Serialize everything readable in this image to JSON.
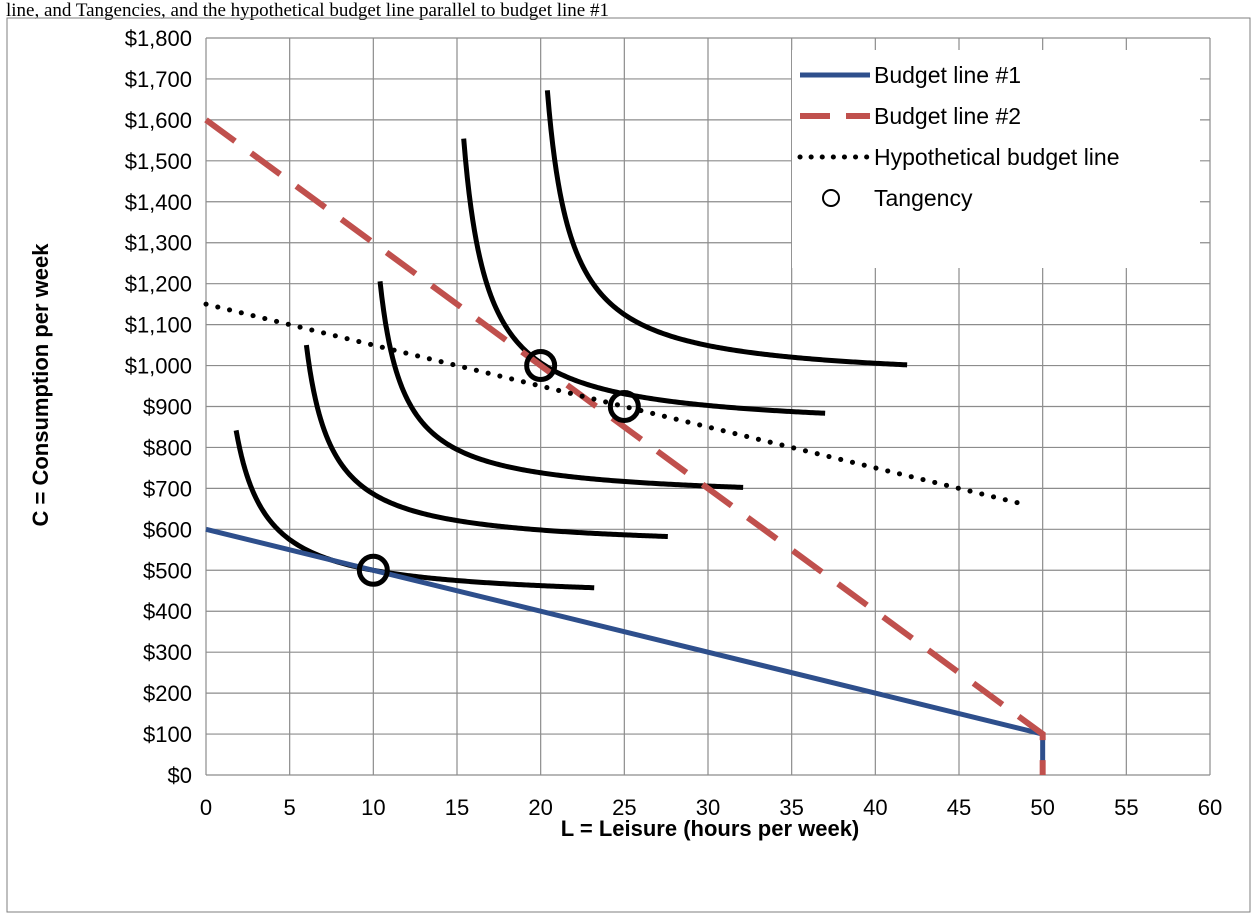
{
  "caption": "line, and Tangencies, and the hypothetical budget line parallel to budget line #1",
  "chart_data": {
    "type": "line",
    "xlabel": "L = Leisure (hours per week)",
    "ylabel": "C = Consumption per week",
    "xlim": [
      0,
      60
    ],
    "ylim": [
      0,
      1800
    ],
    "xticks": [
      0,
      5,
      10,
      15,
      20,
      25,
      30,
      35,
      40,
      45,
      50,
      55,
      60
    ],
    "xtick_labels": [
      "0",
      "5",
      "10",
      "15",
      "20",
      "25",
      "30",
      "35",
      "40",
      "45",
      "50",
      "55",
      "60"
    ],
    "yticks": [
      0,
      100,
      200,
      300,
      400,
      500,
      600,
      700,
      800,
      900,
      1000,
      1100,
      1200,
      1300,
      1400,
      1500,
      1600,
      1700,
      1800
    ],
    "ytick_labels": [
      "$0",
      "$100",
      "$200",
      "$300",
      "$400",
      "$500",
      "$600",
      "$700",
      "$800",
      "$900",
      "$1,000",
      "$1,100",
      "$1,200",
      "$1,300",
      "$1,400",
      "$1,500",
      "$1,600",
      "$1,700",
      "$1,800"
    ],
    "grid": true,
    "legend_position": "top-right",
    "series": [
      {
        "name": "Budget line #1",
        "style": "solid",
        "color": "#2E4F8C",
        "points": [
          [
            0,
            600
          ],
          [
            50,
            100
          ],
          [
            50,
            0
          ]
        ]
      },
      {
        "name": "Budget line #2",
        "style": "dashed",
        "color": "#C0504D",
        "points": [
          [
            0,
            1600
          ],
          [
            50,
            100
          ],
          [
            50,
            0
          ]
        ]
      },
      {
        "name": "Hypothetical budget line",
        "style": "dotted",
        "color": "#000000",
        "points": [
          [
            0,
            1150
          ],
          [
            49,
            660
          ]
        ]
      }
    ],
    "tangency": {
      "name": "Tangency",
      "points": [
        [
          10,
          500
        ],
        [
          20,
          1000
        ],
        [
          25,
          900
        ]
      ]
    },
    "indifference_curves": [
      {
        "asymptote_x": 0,
        "asymptote_y": 425,
        "k": 750,
        "x_range": [
          1.8,
          23.2
        ]
      },
      {
        "asymptote_x": 4.5,
        "asymptote_y": 550,
        "k": 750,
        "x_range": [
          6.0,
          27.6
        ]
      },
      {
        "asymptote_x": 9.0,
        "asymptote_y": 670,
        "k": 750,
        "x_range": [
          10.4,
          32.1
        ]
      },
      {
        "asymptote_x": 14.0,
        "asymptote_y": 840,
        "k": 1000,
        "x_range": [
          15.4,
          37.0
        ]
      },
      {
        "asymptote_x": 19.0,
        "asymptote_y": 958,
        "k": 1000,
        "x_range": [
          20.4,
          41.9
        ]
      }
    ]
  }
}
